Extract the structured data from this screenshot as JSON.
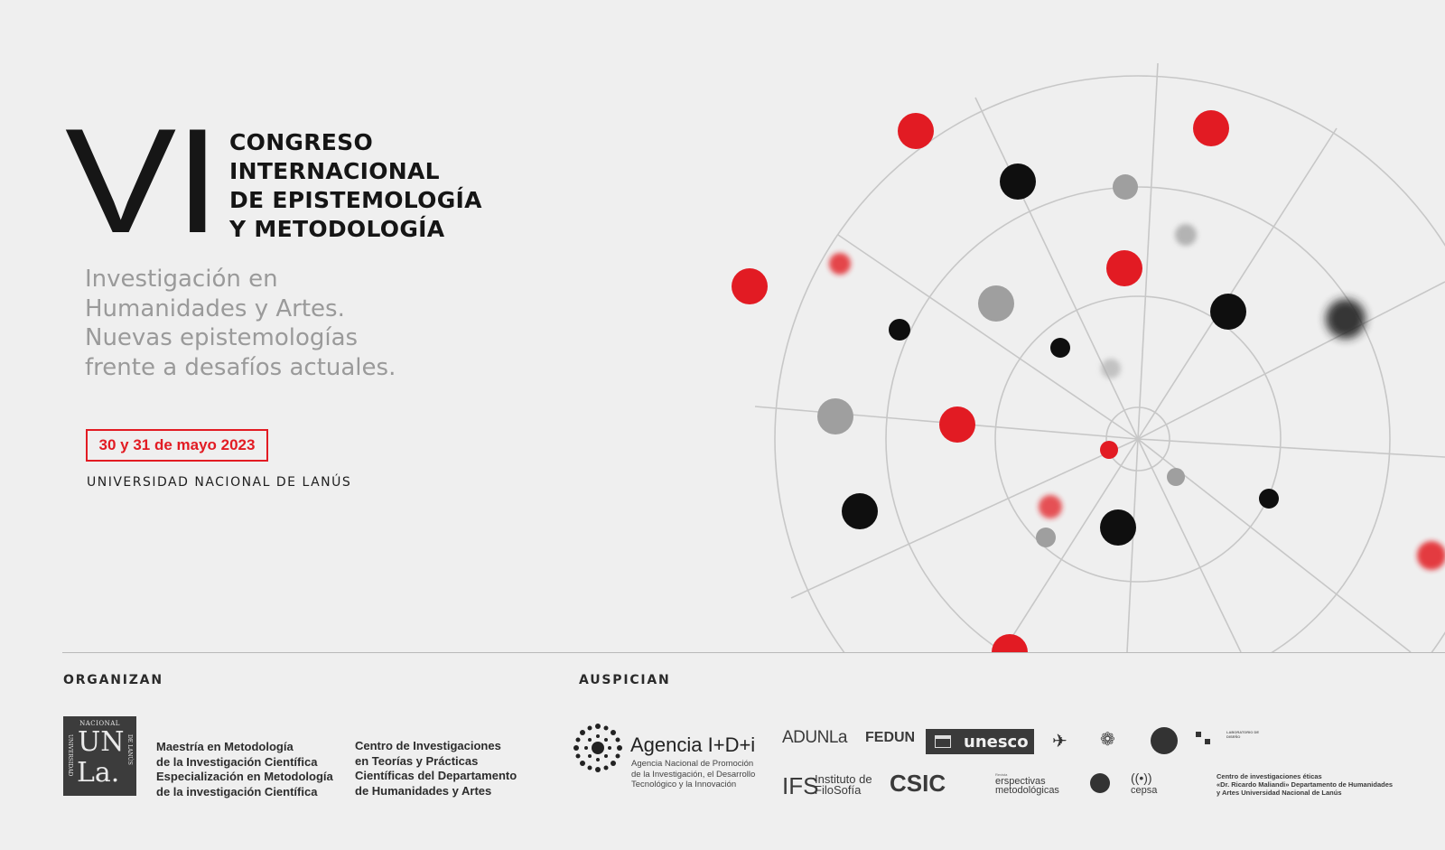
{
  "header": {
    "roman": "VI",
    "title_lines": [
      "CONGRESO",
      "INTERNACIONAL",
      "DE EPISTEMOLOGÍA",
      "Y METODOLOGÍA"
    ],
    "subtitle_lines": [
      "Investigación en",
      "Humanidades y Artes.",
      "Nuevas epistemologías",
      "frente a desafíos actuales."
    ],
    "date": "30 y 31 de mayo 2023",
    "university": "UNIVERSIDAD NACIONAL DE LANÚS"
  },
  "colors": {
    "accent_red": "#e21b23",
    "dark": "#151515",
    "grey": "#9a9a9a",
    "background": "#efefef"
  },
  "footer": {
    "organizan_label": "ORGANIZAN",
    "auspician_label": "AUSPICIAN",
    "unla_logo": {
      "top": "NACIONAL",
      "un": "UN",
      "la": "La.",
      "left": "UNIVERSIDAD",
      "right": "DE LANÚS"
    },
    "org1_lines": [
      "Maestría en Metodología",
      "de la Investigación Científica",
      "Especialización en Metodología",
      "de la investigación Científica"
    ],
    "org2_lines": [
      "Centro de Investigaciones",
      "en Teorías y Prácticas",
      "Científicas del Departamento",
      "de Humanidades y Artes"
    ],
    "agencia": {
      "name": "Agencia I+D+i",
      "desc_lines": [
        "Agencia Nacional de Promoción",
        "de la Investigación, el Desarrollo",
        "Tecnológico y la Innovación"
      ]
    },
    "sponsors": {
      "adunla": "ADUNLa",
      "fedun": "FEDUN",
      "unesco": "unesco",
      "ifs": "IFS",
      "ifs_sub": [
        "Instituto de",
        "FiloSofía"
      ],
      "csic": "CSIC",
      "perspectivas": [
        "Revista",
        "erspectivas",
        "metodológicas"
      ],
      "cepsa": "cepsa",
      "lad": "LABORATORIO DE DISEÑO",
      "centro_eticas": [
        "Centro de investigaciones éticas",
        "«Dr. Ricardo Maliandi» Departamento de Humanidades",
        "y Artes Universidad Nacional de Lanús"
      ]
    }
  }
}
